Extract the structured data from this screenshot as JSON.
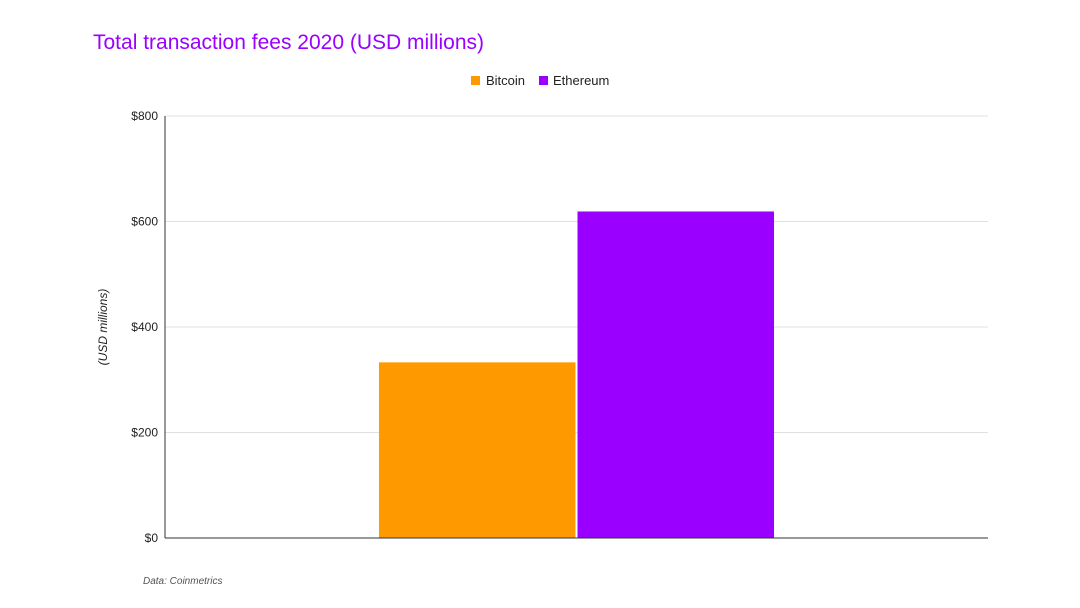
{
  "chart_data": {
    "type": "bar",
    "title": "Total transaction fees 2020 (USD millions)",
    "categories": [
      ""
    ],
    "series": [
      {
        "name": "Bitcoin",
        "color": "#ff9900",
        "values": [
          333
        ]
      },
      {
        "name": "Ethereum",
        "color": "#9900ff",
        "values": [
          619
        ]
      }
    ],
    "xlabel": "",
    "ylabel": "(USD millions)",
    "ylim": [
      0,
      800
    ],
    "yticks": [
      0,
      200,
      400,
      600,
      800
    ],
    "ytick_labels": [
      "$0",
      "$200",
      "$400",
      "$600",
      "$800"
    ],
    "grid": true,
    "legend_position": "top-center",
    "source": "Data: Coinmetrics"
  },
  "colors": {
    "title": "#9900ff",
    "bitcoin": "#ff9900",
    "ethereum": "#9900ff"
  }
}
